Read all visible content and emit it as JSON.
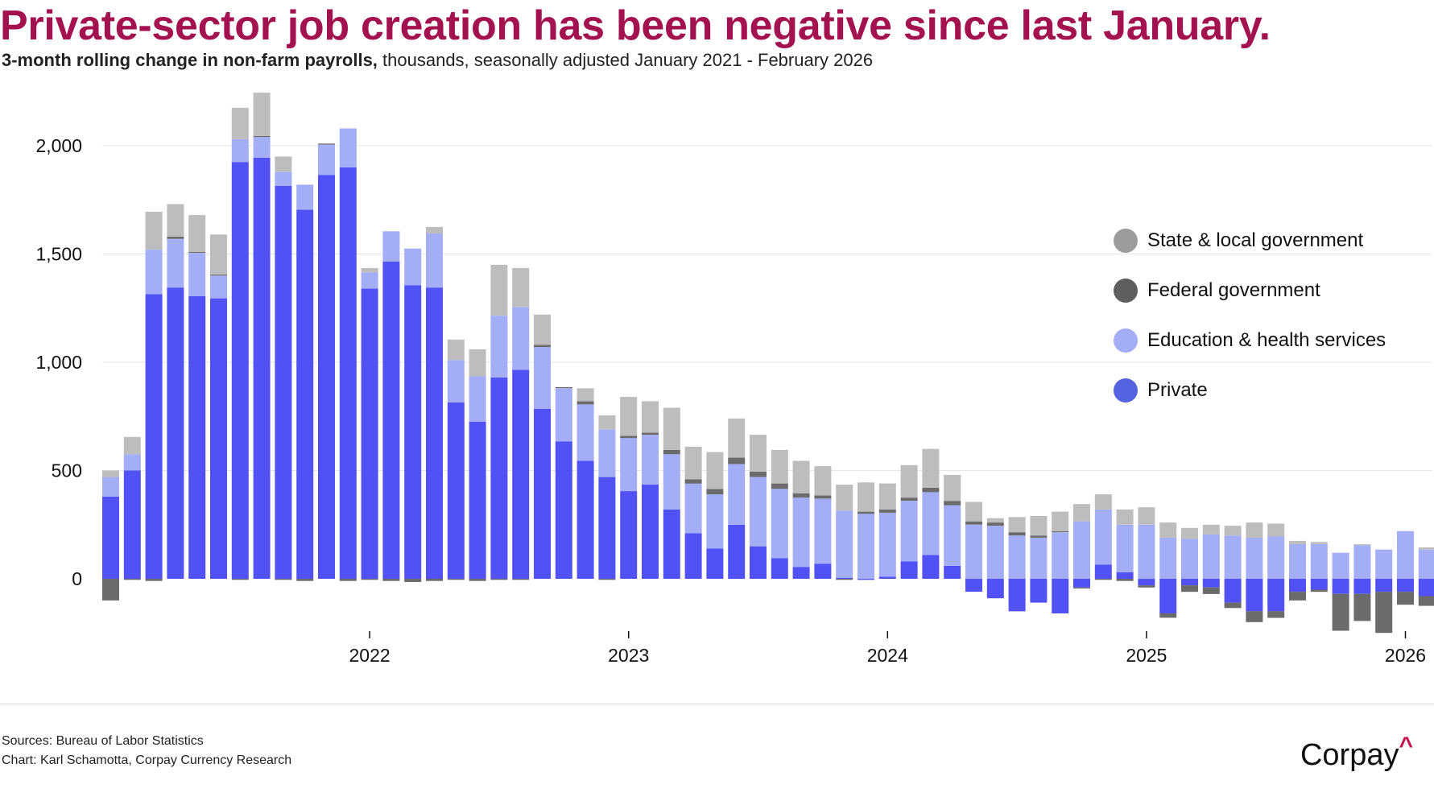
{
  "header": {
    "title": "Private-sector job creation has been negative since last January.",
    "subtitle_bold": "3-month rolling change in non-farm payrolls,",
    "subtitle_rest": " thousands, seasonally adjusted January 2021 - February 2026"
  },
  "footer": {
    "source_line": "Sources: Bureau of Labor Statistics",
    "chart_line": "Chart: Karl Schamotta, Corpay Currency Research",
    "brand": "Corpay",
    "brand_mark": "^"
  },
  "colors": {
    "private": "#5151f5",
    "education_health": "#a3aef7",
    "federal": "#6b6b6b",
    "state_local": "#bdbdbd",
    "title": "#a3124f"
  },
  "chart_data": {
    "type": "bar",
    "stacked": true,
    "title": "Private-sector job creation has been negative since last January.",
    "subtitle": "3-month rolling change in non-farm payrolls, thousands, seasonally adjusted January 2021 - February 2026",
    "xlabel": "",
    "ylabel": "",
    "ylim": [
      -270,
      2270
    ],
    "yticks": [
      0,
      500,
      1000,
      1500,
      2000
    ],
    "ytick_labels": [
      "0",
      "500",
      "1,000",
      "1,500",
      "2,000"
    ],
    "xtick_labels": [
      "2022",
      "2023",
      "2024",
      "2025",
      "2026"
    ],
    "xtick_index": [
      12,
      24,
      36,
      48,
      60
    ],
    "grid": true,
    "legend_position": "right",
    "categories": [
      "2021-01",
      "2021-02",
      "2021-03",
      "2021-04",
      "2021-05",
      "2021-06",
      "2021-07",
      "2021-08",
      "2021-09",
      "2021-10",
      "2021-11",
      "2021-12",
      "2022-01",
      "2022-02",
      "2022-03",
      "2022-04",
      "2022-05",
      "2022-06",
      "2022-07",
      "2022-08",
      "2022-09",
      "2022-10",
      "2022-11",
      "2022-12",
      "2023-01",
      "2023-02",
      "2023-03",
      "2023-04",
      "2023-05",
      "2023-06",
      "2023-07",
      "2023-08",
      "2023-09",
      "2023-10",
      "2023-11",
      "2023-12",
      "2024-01",
      "2024-02",
      "2024-03",
      "2024-04",
      "2024-05",
      "2024-06",
      "2024-07",
      "2024-08",
      "2024-09",
      "2024-10",
      "2024-11",
      "2024-12",
      "2025-01",
      "2025-02",
      "2025-03",
      "2025-04",
      "2025-05",
      "2025-06",
      "2025-07",
      "2025-08",
      "2025-09",
      "2025-10",
      "2025-11",
      "2025-12",
      "2026-01",
      "2026-02"
    ],
    "series": [
      {
        "name": "Private",
        "key": "private",
        "values": [
          380,
          500,
          1315,
          1345,
          1305,
          1295,
          1925,
          1945,
          1815,
          1705,
          1865,
          1900,
          1340,
          1465,
          1355,
          1345,
          815,
          725,
          930,
          965,
          785,
          635,
          545,
          470,
          405,
          435,
          320,
          210,
          140,
          250,
          150,
          95,
          55,
          70,
          5,
          -5,
          10,
          80,
          110,
          60,
          -60,
          -90,
          -150,
          -110,
          -160,
          -40,
          65,
          30,
          -30,
          -160,
          -30,
          -40,
          -110,
          -150,
          -150,
          -60,
          -50,
          -70,
          -70,
          -60,
          -60,
          -80
        ]
      },
      {
        "name": "Education & health services",
        "key": "education_health",
        "values": [
          90,
          75,
          205,
          225,
          200,
          105,
          105,
          95,
          65,
          115,
          140,
          180,
          75,
          140,
          170,
          250,
          195,
          210,
          285,
          290,
          285,
          245,
          260,
          220,
          245,
          230,
          255,
          230,
          250,
          280,
          320,
          320,
          320,
          300,
          310,
          300,
          295,
          280,
          290,
          280,
          250,
          245,
          200,
          190,
          215,
          265,
          255,
          220,
          250,
          190,
          185,
          205,
          200,
          190,
          195,
          160,
          160,
          120,
          155,
          135,
          220,
          135
        ]
      },
      {
        "name": "Federal government",
        "key": "federal",
        "values": [
          -100,
          -5,
          -10,
          10,
          5,
          5,
          -5,
          5,
          -5,
          -10,
          5,
          -10,
          -5,
          -10,
          -15,
          -10,
          -5,
          -10,
          -5,
          -5,
          10,
          5,
          15,
          -5,
          10,
          10,
          20,
          20,
          25,
          30,
          25,
          25,
          20,
          15,
          -5,
          10,
          15,
          15,
          20,
          20,
          15,
          15,
          15,
          10,
          5,
          -5,
          -5,
          -10,
          -10,
          -20,
          -30,
          -30,
          -25,
          -50,
          -30,
          -40,
          -10,
          -170,
          -125,
          -190,
          -60,
          -45
        ]
      },
      {
        "name": "State & local government",
        "key": "state_local",
        "values": [
          30,
          80,
          175,
          150,
          170,
          185,
          145,
          200,
          70,
          0,
          0,
          0,
          20,
          0,
          0,
          30,
          95,
          125,
          235,
          180,
          140,
          0,
          60,
          65,
          180,
          145,
          195,
          150,
          170,
          180,
          170,
          155,
          150,
          135,
          120,
          135,
          120,
          150,
          180,
          120,
          90,
          20,
          70,
          90,
          90,
          80,
          70,
          70,
          80,
          70,
          50,
          45,
          45,
          70,
          60,
          15,
          10,
          0,
          5,
          0,
          0,
          10
        ]
      }
    ]
  }
}
